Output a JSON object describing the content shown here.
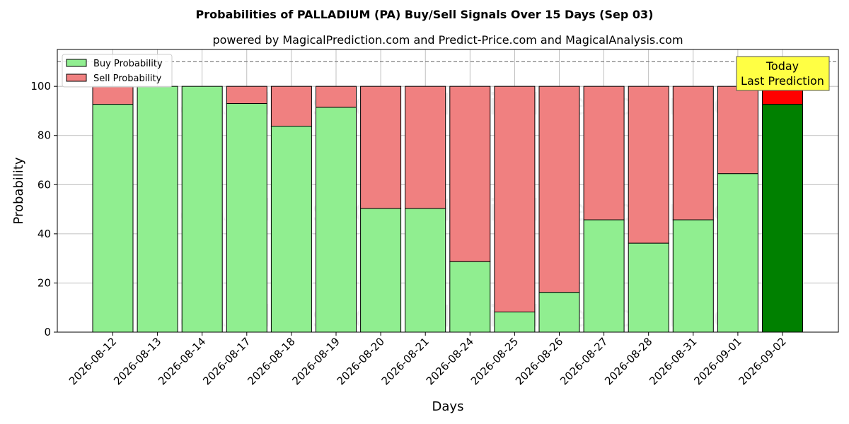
{
  "chart_data": {
    "type": "bar",
    "stacked": true,
    "title": "Probabilities of PALLADIUM (PA) Buy/Sell Signals Over 15 Days (Sep 03)",
    "subtitle": "powered by MagicalPrediction.com and Predict-Price.com and MagicalAnalysis.com",
    "xlabel": "Days",
    "ylabel": "Probability",
    "ylim": [
      0,
      115
    ],
    "yticks": [
      0,
      20,
      40,
      60,
      80,
      100
    ],
    "grid": true,
    "legend_position": "top-left",
    "reference_line": 110,
    "categories": [
      "2026-08-12",
      "2026-08-13",
      "2026-08-14",
      "2026-08-17",
      "2026-08-18",
      "2026-08-19",
      "2026-08-20",
      "2026-08-21",
      "2026-08-24",
      "2026-08-25",
      "2026-08-26",
      "2026-08-27",
      "2026-08-28",
      "2026-08-31",
      "2026-09-01",
      "2026-09-02"
    ],
    "series": [
      {
        "name": "Buy Probability",
        "color": "#90ee90",
        "highlight_color": "#008000",
        "values": [
          92.7,
          100,
          100,
          93,
          83.8,
          91.5,
          50.3,
          50.3,
          28.7,
          8.2,
          16.2,
          45.7,
          36.2,
          45.7,
          64.5,
          92.7
        ]
      },
      {
        "name": "Sell Probability",
        "color": "#f08080",
        "highlight_color": "#ff0000",
        "values": [
          7.3,
          0,
          0,
          7,
          16.2,
          8.5,
          49.7,
          49.7,
          71.3,
          91.8,
          83.8,
          54.3,
          63.8,
          54.3,
          35.5,
          7.3
        ]
      }
    ],
    "annotation": {
      "lines": [
        "Today",
        "Last Prediction"
      ],
      "color": "#ffff44"
    },
    "watermarks": [
      "MagicalAnalysis.com",
      "MagicalPrediction.com"
    ]
  }
}
